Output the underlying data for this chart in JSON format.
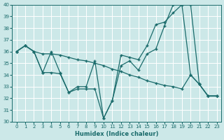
{
  "xlabel": "Humidex (Indice chaleur)",
  "xlim": [
    -0.5,
    23.5
  ],
  "ylim": [
    30,
    40
  ],
  "xticks": [
    0,
    1,
    2,
    3,
    4,
    5,
    6,
    7,
    8,
    9,
    10,
    11,
    12,
    13,
    14,
    15,
    16,
    17,
    18,
    19,
    20,
    21,
    22,
    23
  ],
  "yticks": [
    30,
    31,
    32,
    33,
    34,
    35,
    36,
    37,
    38,
    39,
    40
  ],
  "bg_color": "#cce8e8",
  "grid_color": "#ffffff",
  "line_color": "#1a6b6b",
  "line1_y": [
    36.0,
    36.5,
    36.0,
    35.8,
    35.8,
    35.7,
    35.5,
    35.3,
    35.2,
    35.0,
    34.8,
    34.5,
    34.3,
    34.0,
    33.8,
    33.5,
    33.3,
    33.1,
    33.0,
    32.8,
    34.0,
    33.2,
    32.2,
    32.2
  ],
  "line2_y": [
    36.0,
    36.5,
    36.0,
    34.2,
    36.0,
    34.2,
    32.5,
    33.0,
    33.0,
    35.2,
    30.3,
    31.8,
    35.7,
    35.5,
    35.3,
    36.5,
    38.3,
    38.5,
    39.3,
    40.0,
    40.0,
    33.2,
    32.2,
    32.2
  ],
  "line3_y": [
    36.0,
    36.5,
    36.0,
    34.2,
    34.2,
    34.1,
    32.5,
    32.8,
    32.8,
    32.8,
    30.3,
    31.8,
    34.8,
    35.2,
    34.4,
    35.8,
    36.2,
    38.2,
    40.0,
    40.0,
    34.0,
    33.2,
    32.2,
    32.2
  ]
}
